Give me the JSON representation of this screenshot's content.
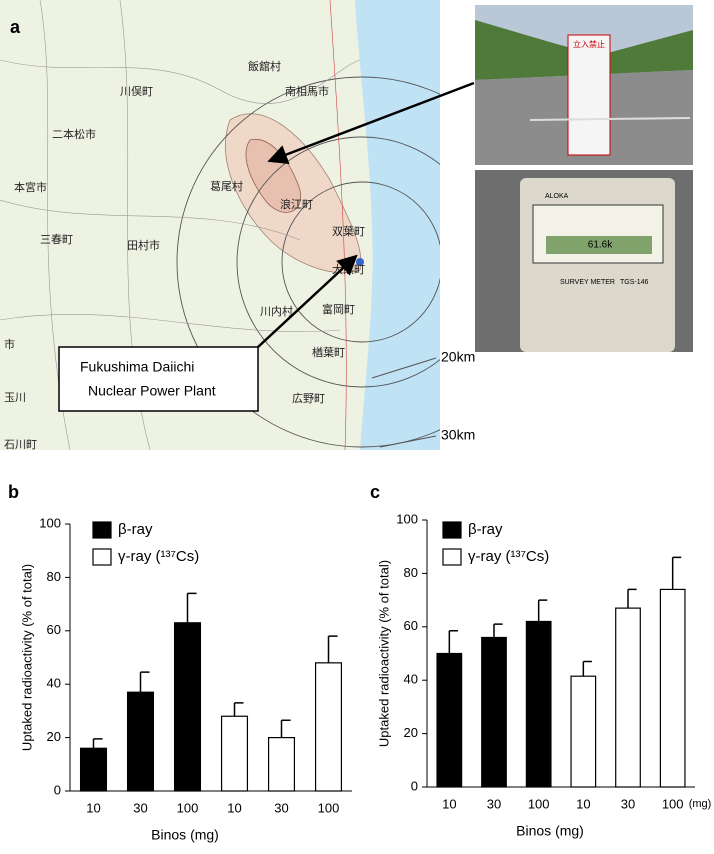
{
  "panel_a": {
    "label": "a",
    "places": [
      "飯舘村",
      "南相馬市",
      "川俣町",
      "二本松市",
      "葛尾村",
      "浪江町",
      "本宮市",
      "双葉町",
      "三春町",
      "田村市",
      "大熊町",
      "川内村",
      "富岡町",
      "楢葉町",
      "広野町",
      "市",
      "玉川",
      "石川町"
    ],
    "plant_label": [
      "Fukushima Daiichi",
      "Nuclear Power Plant"
    ],
    "radii": [
      "20km",
      "30km"
    ],
    "sign_text": "立入禁止",
    "meter_texts": [
      "ALOKA",
      "SURVEY METER",
      "TGS-146",
      "61.6k"
    ]
  },
  "chart_data": [
    {
      "type": "bar",
      "panel": "b",
      "x_label": "Binos (mg)",
      "y_label": "Uptaked radioactivity (% of total)",
      "categories": [
        "10",
        "30",
        "100",
        "10",
        "30",
        "100"
      ],
      "series": [
        {
          "name": "β-ray",
          "color": "#000000",
          "values": [
            16,
            37,
            63,
            null,
            null,
            null
          ],
          "errors": [
            3.5,
            7.5,
            11,
            null,
            null,
            null
          ]
        },
        {
          "name": "γ-ray (¹³⁷Cs)",
          "color": "#ffffff",
          "values": [
            null,
            null,
            null,
            28,
            20,
            48
          ],
          "errors": [
            null,
            null,
            null,
            5,
            6.5,
            10
          ]
        }
      ],
      "ylim": [
        0,
        100
      ],
      "yticks": [
        0,
        20,
        40,
        60,
        80,
        100
      ]
    },
    {
      "type": "bar",
      "panel": "c",
      "x_label": "Binos (mg)",
      "x_unit": "(mg)",
      "y_label": "Uptaked radioactivity (% of total)",
      "categories": [
        "10",
        "30",
        "100",
        "10",
        "30",
        "100"
      ],
      "series": [
        {
          "name": "β-ray",
          "color": "#000000",
          "values": [
            50,
            56,
            62,
            null,
            null,
            null
          ],
          "errors": [
            8.5,
            5,
            8,
            null,
            null,
            null
          ]
        },
        {
          "name": "γ-ray (¹³⁷Cs)",
          "color": "#ffffff",
          "values": [
            null,
            null,
            null,
            41.5,
            67,
            74
          ],
          "errors": [
            null,
            null,
            null,
            5.5,
            7,
            12
          ]
        }
      ],
      "ylim": [
        0,
        100
      ],
      "yticks": [
        0,
        20,
        40,
        60,
        80,
        100
      ]
    }
  ]
}
